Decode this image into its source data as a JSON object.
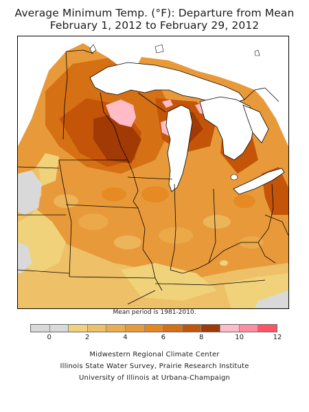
{
  "title": {
    "line1": "Average Minimum Temp. (°F): Departure from Mean",
    "line2": "February 1, 2012 to February 29, 2012"
  },
  "footnote": "Mean period is 1981-2010.",
  "legend": {
    "colors": [
      "#d9d9d9",
      "#d9d9d9",
      "#f0d27a",
      "#eec067",
      "#ebad4e",
      "#e99a38",
      "#e5861e",
      "#d57014",
      "#c45508",
      "#a13a05",
      "#ffbcc7",
      "#ff8da0",
      "#ff5466"
    ],
    "tick_labels": [
      "0",
      "2",
      "4",
      "6",
      "8",
      "10",
      "12"
    ]
  },
  "credits": {
    "line1": "Midwestern Regional Climate Center",
    "line2": "Illinois State Water Survey, Prairie Research Institute",
    "line3": "University of Illinois at Urbana-Champaign"
  }
}
